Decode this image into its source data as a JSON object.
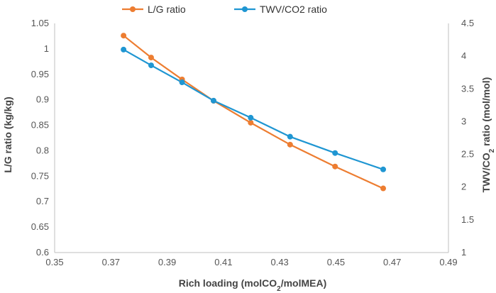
{
  "chart_data": {
    "type": "line",
    "x": [
      0.3745,
      0.3843,
      0.3953,
      0.4065,
      0.4197,
      0.4337,
      0.4497,
      0.4668
    ],
    "series": [
      {
        "name": "L/G ratio",
        "axis": "left",
        "color": "#ED7D31",
        "values": [
          1.026,
          0.983,
          0.94,
          0.898,
          0.855,
          0.812,
          0.769,
          0.726
        ]
      },
      {
        "name": "TWV/CO2 ratio",
        "axis": "right",
        "color": "#1F96D2",
        "values": [
          4.1,
          3.86,
          3.6,
          3.32,
          3.06,
          2.77,
          2.52,
          2.27
        ]
      }
    ],
    "xlim": [
      0.35,
      0.49
    ],
    "ylim_left": [
      0.6,
      1.05
    ],
    "ylim_right": [
      1,
      4.5
    ],
    "x_ticks": [
      "0.35",
      "0.37",
      "0.39",
      "0.41",
      "0.43",
      "0.45",
      "0.47",
      "0.49"
    ],
    "y_left_ticks": [
      "0.6",
      "0.65",
      "0.7",
      "0.75",
      "0.8",
      "0.85",
      "0.9",
      "0.95",
      "1",
      "1.05"
    ],
    "y_right_ticks": [
      "1",
      "1.5",
      "2",
      "2.5",
      "3",
      "3.5",
      "4",
      "4.5"
    ],
    "xlabel": {
      "main": "Rich loading (molCO",
      "sub": "2",
      "tail": "/molMEA)"
    },
    "ylabel_left": "L/G ratio (kg/kg)",
    "ylabel_right": {
      "main": "TWV/CO",
      "sub": "2",
      "tail": " ratio (mol/mol)"
    },
    "legend_position": "top",
    "grid": false
  }
}
